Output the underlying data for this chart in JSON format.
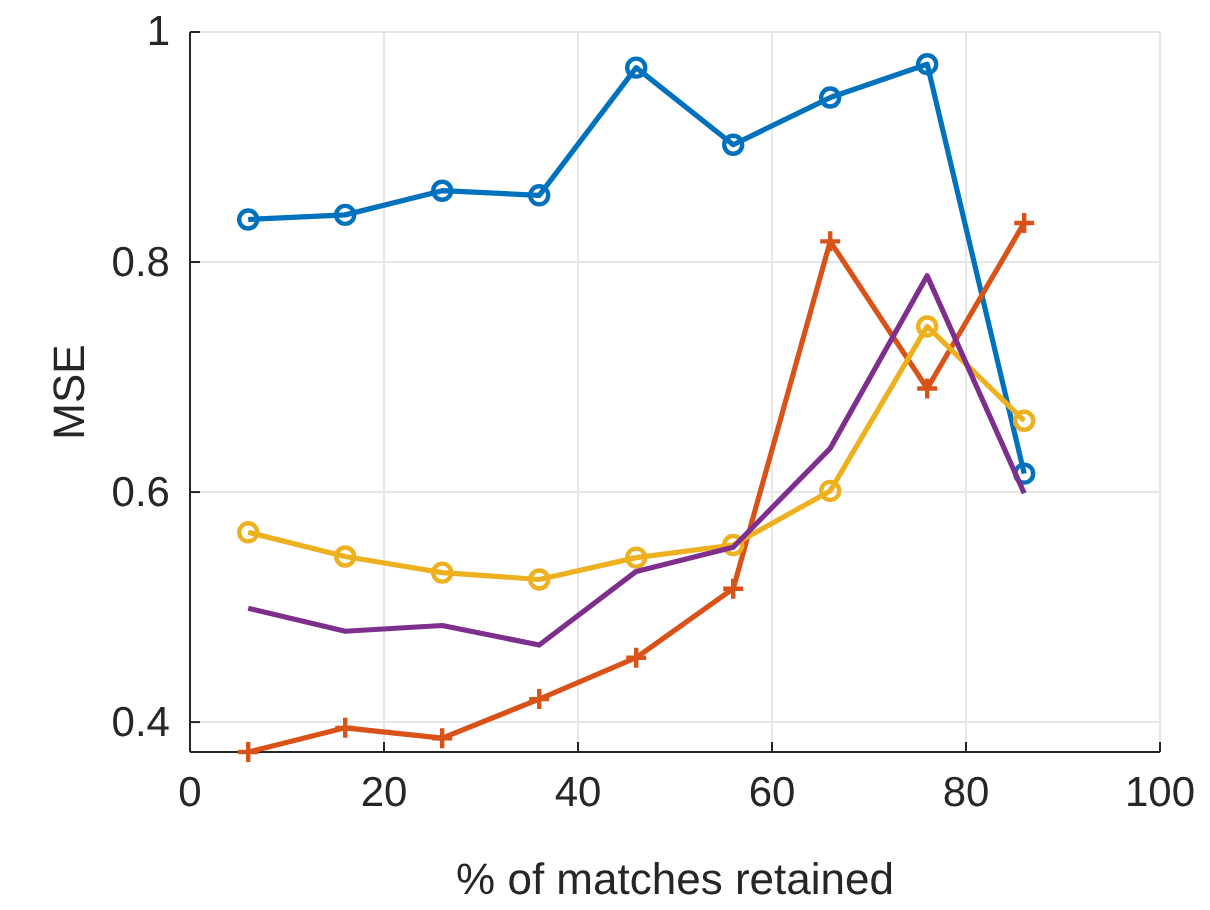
{
  "chart_data": {
    "type": "line",
    "xlabel": "% of matches retained",
    "ylabel": "MSE",
    "x": [
      6,
      16,
      26,
      36,
      46,
      56,
      66,
      76,
      86
    ],
    "xlim": [
      0,
      100
    ],
    "xticks": [
      0,
      20,
      40,
      60,
      80,
      100
    ],
    "ylim": [
      0.374,
      1
    ],
    "yticks": [
      0.4,
      0.6,
      0.8,
      1
    ],
    "grid": true,
    "series": [
      {
        "color": "#0072bd",
        "marker": "circle",
        "values": [
          0.837,
          0.841,
          0.862,
          0.858,
          0.969,
          0.902,
          0.943,
          0.972,
          0.616
        ]
      },
      {
        "color": "#d95319",
        "marker": "cross",
        "values": [
          0.374,
          0.395,
          0.386,
          0.42,
          0.456,
          0.516,
          0.818,
          0.69,
          0.834
        ]
      },
      {
        "color": "#edb120",
        "marker": "circle",
        "values": [
          0.565,
          0.544,
          0.53,
          0.524,
          0.543,
          0.554,
          0.601,
          0.744,
          0.662
        ]
      },
      {
        "color": "#7e2f8e",
        "marker": "none",
        "values": [
          0.499,
          0.479,
          0.484,
          0.467,
          0.531,
          0.552,
          0.638,
          0.788,
          0.599
        ]
      }
    ]
  }
}
